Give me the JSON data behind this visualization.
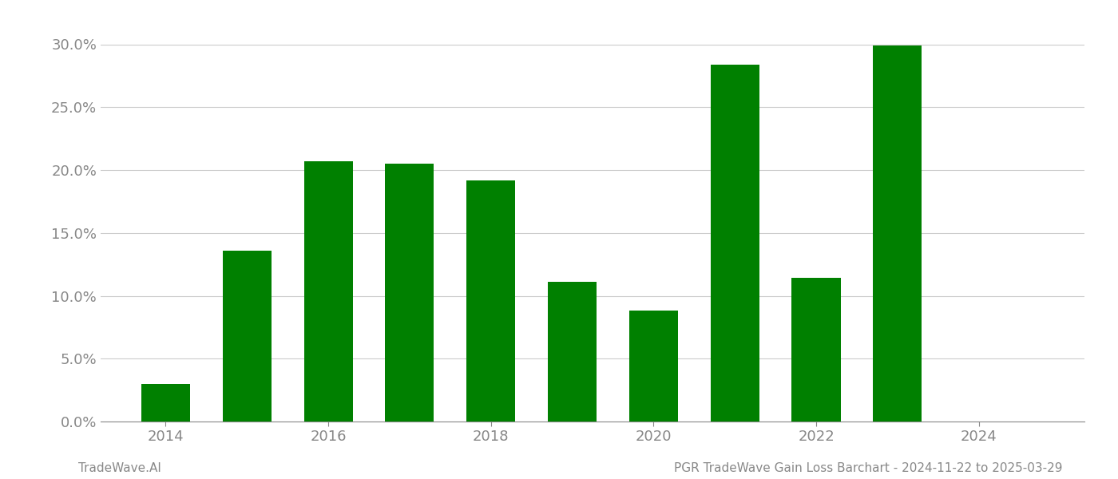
{
  "years": [
    2014,
    2015,
    2016,
    2017,
    2018,
    2019,
    2020,
    2021,
    2022,
    2023,
    2024
  ],
  "values": [
    0.03,
    0.136,
    0.207,
    0.205,
    0.192,
    0.111,
    0.088,
    0.284,
    0.114,
    0.299,
    0.0
  ],
  "bar_color": "#008000",
  "background_color": "#ffffff",
  "grid_color": "#cccccc",
  "axis_color": "#888888",
  "tick_color": "#888888",
  "xlim": [
    2013.2,
    2025.3
  ],
  "ylim": [
    0,
    0.32
  ],
  "yticks": [
    0.0,
    0.05,
    0.1,
    0.15,
    0.2,
    0.25,
    0.3
  ],
  "xticks": [
    2014,
    2016,
    2018,
    2020,
    2022,
    2024
  ],
  "tick_fontsize": 13,
  "footer_left": "TradeWave.AI",
  "footer_right": "PGR TradeWave Gain Loss Barchart - 2024-11-22 to 2025-03-29",
  "footer_fontsize": 11
}
